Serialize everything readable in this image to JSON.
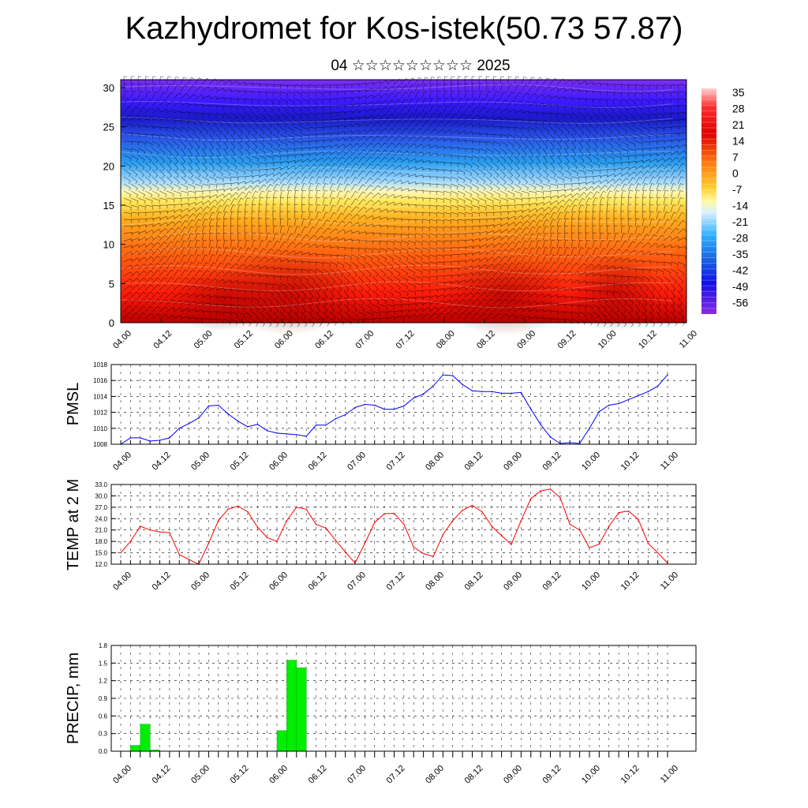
{
  "header": {
    "title": "Kazhydromet for Kos-istek(50.73 57.87)",
    "subtitle": "04 ☆☆☆☆☆☆☆☆☆ 2025"
  },
  "time_ticks": [
    "04.00",
    "04.12",
    "05.00",
    "05.12",
    "06.00",
    "06.12",
    "07.00",
    "07.12",
    "08.00",
    "08.12",
    "09.00",
    "09.12",
    "10.00",
    "10.12",
    "11.00"
  ],
  "colorbar": {
    "labels": [
      "35",
      "28",
      "21",
      "14",
      "7",
      "0",
      "-7",
      "-14",
      "-21",
      "-28",
      "-35",
      "-42",
      "-49",
      "-56"
    ]
  },
  "chart_data": [
    {
      "type": "heatmap",
      "title": "",
      "ylabel": "",
      "ylim": [
        0,
        30
      ],
      "yticks": [
        "0",
        "5",
        "10",
        "15",
        "20",
        "25",
        "30"
      ],
      "x": [
        "04.00",
        "04.12",
        "05.00",
        "05.12",
        "06.00",
        "06.12",
        "07.00",
        "07.12",
        "08.00",
        "08.12",
        "09.00",
        "09.12",
        "10.00",
        "10.12",
        "11.00"
      ],
      "color_scale": [
        "#8a2be2",
        "#2b3bff",
        "#3aa0ff",
        "#8fd4ff",
        "#fffbb0",
        "#ffd43a",
        "#ff8c1a",
        "#ff3a10",
        "#c20000"
      ],
      "overlay": "wind barbs"
    },
    {
      "type": "line",
      "ylabel": "PMSL",
      "ylim": [
        1008,
        1018
      ],
      "yticks": [
        "1008",
        "1010",
        "1012",
        "1014",
        "1016",
        "1018"
      ],
      "color": "#0000ff",
      "values": [
        1008.0,
        1008.8,
        1008.8,
        1008.4,
        1008.5,
        1008.8,
        1010.0,
        1010.6,
        1011.3,
        1012.8,
        1012.9,
        1011.8,
        1010.9,
        1010.2,
        1010.5,
        1009.7,
        1009.4,
        1009.3,
        1009.2,
        1009.0,
        1010.4,
        1010.4,
        1011.2,
        1011.7,
        1012.6,
        1013.0,
        1012.9,
        1012.4,
        1012.4,
        1012.8,
        1013.8,
        1014.3,
        1015.3,
        1016.7,
        1016.6,
        1015.5,
        1014.7,
        1014.6,
        1014.6,
        1014.4,
        1014.4,
        1014.5,
        1012.4,
        1010.5,
        1008.9,
        1008.1,
        1008.2,
        1008.1,
        1010.0,
        1012.1,
        1012.9,
        1013.1,
        1013.6,
        1014.1,
        1014.6,
        1015.3,
        1016.7
      ]
    },
    {
      "type": "line",
      "ylabel": "TEMP at 2 M",
      "ylim": [
        12.0,
        33.0
      ],
      "yticks": [
        "12.0",
        "15.0",
        "18.0",
        "21.0",
        "24.0",
        "27.0",
        "30.0",
        "33.0"
      ],
      "color": "#ff0000",
      "values": [
        15.0,
        18.0,
        22.0,
        21.0,
        20.5,
        20.3,
        14.5,
        13.2,
        12.0,
        17.5,
        23.5,
        26.5,
        27.3,
        25.8,
        21.8,
        19.0,
        18.0,
        23.5,
        27.0,
        26.5,
        22.5,
        21.5,
        18.3,
        15.2,
        12.3,
        17.5,
        23.0,
        25.3,
        25.4,
        22.5,
        16.5,
        14.8,
        14.0,
        19.8,
        23.5,
        26.2,
        27.5,
        25.8,
        22.0,
        19.5,
        17.2,
        23.5,
        29.3,
        31.3,
        31.8,
        29.5,
        22.5,
        21.0,
        16.3,
        17.3,
        22.0,
        25.6,
        26.0,
        23.8,
        17.5,
        15.0,
        12.3
      ]
    },
    {
      "type": "bar",
      "ylabel": "PRECIP, mm",
      "ylim": [
        0.0,
        1.8
      ],
      "yticks": [
        "0.0",
        "0.3",
        "0.6",
        "0.9",
        "1.2",
        "1.5",
        "1.8"
      ],
      "color": "#00ee00",
      "x": [
        "04.06",
        "04.09",
        "04.12",
        "06.03",
        "06.06",
        "06.09"
      ],
      "values": [
        0.1,
        0.46,
        0.02,
        0.35,
        1.55,
        1.42
      ]
    }
  ]
}
